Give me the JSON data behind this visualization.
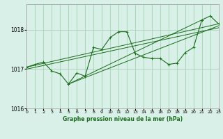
{
  "bg_color": "#d8f0e8",
  "line_color": "#1a6b1a",
  "grid_color": "#a0c8b0",
  "title": "Graphe pression niveau de la mer (hPa)",
  "xlim": [
    0,
    23
  ],
  "ylim": [
    1016.0,
    1018.65
  ],
  "yticks": [
    1016,
    1017,
    1018
  ],
  "xticks": [
    0,
    1,
    2,
    3,
    4,
    5,
    6,
    7,
    8,
    9,
    10,
    11,
    12,
    13,
    14,
    15,
    16,
    17,
    18,
    19,
    20,
    21,
    22,
    23
  ],
  "series": [
    [
      0,
      1017.05
    ],
    [
      1,
      1017.12
    ],
    [
      2,
      1017.18
    ],
    [
      3,
      1016.95
    ],
    [
      4,
      1016.88
    ],
    [
      5,
      1016.62
    ],
    [
      6,
      1016.9
    ],
    [
      7,
      1016.82
    ],
    [
      8,
      1017.55
    ],
    [
      9,
      1017.5
    ],
    [
      10,
      1017.8
    ],
    [
      11,
      1017.95
    ],
    [
      12,
      1017.95
    ],
    [
      13,
      1017.4
    ],
    [
      14,
      1017.3
    ],
    [
      15,
      1017.27
    ],
    [
      16,
      1017.27
    ],
    [
      17,
      1017.12
    ],
    [
      18,
      1017.15
    ],
    [
      19,
      1017.42
    ],
    [
      20,
      1017.55
    ],
    [
      21,
      1018.25
    ],
    [
      22,
      1018.35
    ],
    [
      23,
      1018.15
    ]
  ],
  "trend_series": [
    [
      [
        0,
        1017.05
      ],
      [
        23,
        1018.15
      ]
    ],
    [
      [
        0,
        1017.0
      ],
      [
        23,
        1018.05
      ]
    ],
    [
      [
        5,
        1016.62
      ],
      [
        23,
        1018.1
      ]
    ],
    [
      [
        5,
        1016.62
      ],
      [
        21,
        1018.25
      ]
    ]
  ],
  "figsize": [
    3.2,
    2.0
  ],
  "dpi": 100
}
